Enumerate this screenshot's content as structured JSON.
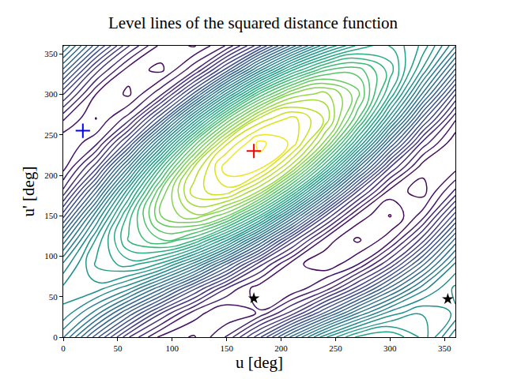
{
  "chart_data": {
    "type": "contour",
    "title": "Level lines of the squared distance function",
    "x_label": "u [deg]",
    "y_label": "u' [deg]",
    "color": "Viridis",
    "x": [
      0,
      30,
      60,
      90,
      120,
      150,
      180,
      210,
      240,
      270,
      300,
      330,
      360
    ],
    "y": [
      0,
      30,
      60,
      90,
      120,
      150,
      180,
      210,
      240,
      270,
      300,
      330,
      360
    ],
    "z": [
      [
        6.28,
        4.86,
        3.52,
        2.65,
        2.47,
        3.03,
        4.18,
        5.6,
        6.94,
        7.81,
        7.99,
        7.43,
        6.28
      ],
      [
        6.96,
        6.14,
        4.97,
        3.77,
        2.88,
        2.51,
        2.78,
        3.6,
        4.77,
        5.97,
        6.86,
        7.23,
        6.96
      ],
      [
        7.07,
        7.13,
        6.56,
        5.53,
        4.31,
        3.23,
        2.57,
        2.51,
        3.08,
        4.11,
        5.33,
        6.41,
        7.07
      ],
      [
        6.56,
        7.55,
        7.86,
        7.43,
        6.38,
        4.97,
        3.6,
        2.61,
        2.3,
        2.73,
        3.78,
        5.19,
        6.56
      ],
      [
        5.59,
        7.29,
        8.53,
        8.98,
        8.53,
        7.29,
        5.59,
        3.89,
        2.65,
        2.2,
        2.65,
        3.89,
        5.59
      ],
      [
        4.4,
        6.43,
        8.38,
        9.76,
        10.19,
        9.55,
        8.02,
        5.99,
        4.04,
        2.66,
        2.23,
        2.87,
        4.4
      ],
      [
        3.32,
        5.18,
        7.46,
        9.55,
        10.91,
        11.15,
        10.22,
        8.36,
        6.08,
        3.99,
        2.63,
        2.39,
        3.32
      ],
      [
        2.64,
        3.9,
        6.01,
        8.43,
        10.5,
        11.67,
        11.62,
        10.36,
        8.25,
        5.83,
        3.76,
        2.59,
        2.64
      ],
      [
        2.53,
        2.91,
        4.42,
        6.67,
        9.07,
        10.95,
        11.83,
        11.45,
        9.94,
        7.69,
        5.29,
        3.41,
        2.53
      ],
      [
        3.04,
        2.49,
        3.12,
        4.77,
        7.0,
        9.21,
        10.8,
        11.35,
        10.72,
        9.07,
        6.84,
        4.63,
        3.04
      ],
      [
        4.01,
        2.75,
        2.45,
        3.22,
        4.85,
        6.89,
        8.81,
        10.07,
        10.37,
        9.6,
        7.97,
        5.93,
        4.01
      ],
      [
        5.2,
        3.61,
        2.6,
        2.44,
        3.19,
        4.63,
        6.38,
        7.97,
        8.98,
        9.14,
        8.39,
        6.95,
        5.2
      ],
      [
        6.28,
        4.86,
        3.52,
        2.65,
        2.47,
        3.03,
        4.18,
        5.6,
        6.94,
        7.81,
        7.99,
        7.43,
        6.28
      ]
    ],
    "levels": {
      "start": 2.25,
      "end": 11.75,
      "size": 0.25
    },
    "series": [
      {
        "type": "scatter",
        "marker": "plus",
        "color": "#ff0000",
        "x": [
          175
        ],
        "y": [
          230
        ]
      },
      {
        "type": "scatter",
        "marker": "plus",
        "color": "#0000ff",
        "x": [
          18
        ],
        "y": [
          255
        ]
      },
      {
        "type": "scatter",
        "marker": "star",
        "color": "#000000",
        "x": [
          175,
          353
        ],
        "y": [
          48,
          47
        ]
      }
    ],
    "xlim": [
      0,
      360
    ],
    "xticks": [
      0,
      50,
      100,
      150,
      200,
      250,
      300,
      350
    ],
    "ylim": [
      0,
      360
    ],
    "yticks": [
      0,
      50,
      100,
      150,
      200,
      250,
      300,
      350
    ],
    "grid": false
  }
}
